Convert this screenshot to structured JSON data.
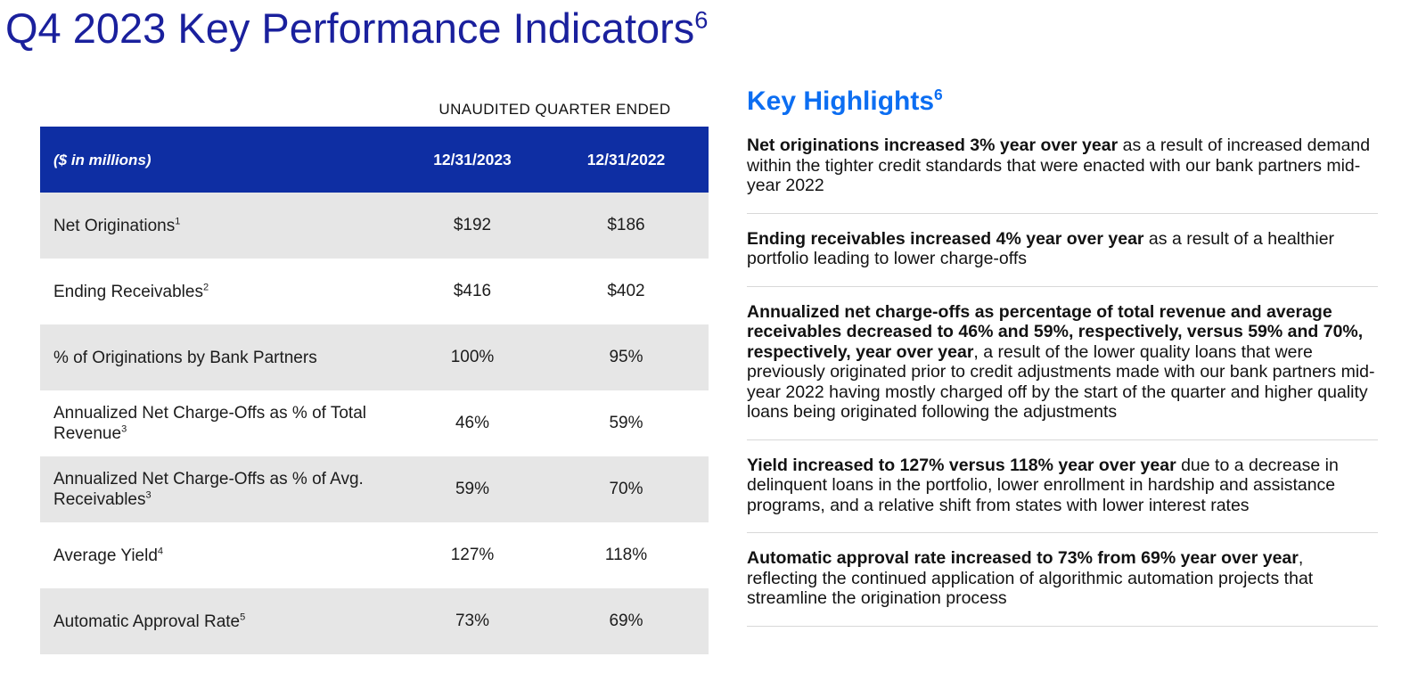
{
  "page": {
    "title": "Q4 2023 Key Performance Indicators",
    "title_superscript": "6"
  },
  "table": {
    "caption": "UNAUDITED QUARTER ENDED",
    "header": {
      "label": "($ in millions)",
      "col2023": "12/31/2023",
      "col2022": "12/31/2022"
    },
    "rows": [
      {
        "label": "Net Originations",
        "sup": "1",
        "v2023": "$192",
        "v2022": "$186"
      },
      {
        "label": "Ending Receivables",
        "sup": "2",
        "v2023": "$416",
        "v2022": "$402"
      },
      {
        "label": "% of Originations by Bank Partners",
        "sup": "",
        "v2023": "100%",
        "v2022": "95%"
      },
      {
        "label": "Annualized Net Charge-Offs as % of Total Revenue",
        "sup": "3",
        "v2023": "46%",
        "v2022": "59%"
      },
      {
        "label": "Annualized Net Charge-Offs as % of Avg. Receivables",
        "sup": "3",
        "v2023": "59%",
        "v2022": "70%"
      },
      {
        "label": "Average Yield",
        "sup": "4",
        "v2023": "127%",
        "v2022": "118%"
      },
      {
        "label": "Automatic Approval Rate",
        "sup": "5",
        "v2023": "73%",
        "v2022": "69%"
      }
    ]
  },
  "highlights": {
    "heading": "Key Highlights",
    "heading_superscript": "6",
    "items": [
      {
        "bold": "Net originations increased 3% year over year",
        "rest": " as a result of increased demand within the tighter credit standards that were enacted with our bank partners mid-year 2022"
      },
      {
        "bold": "Ending receivables increased 4% year over year",
        "rest": " as a result of a healthier portfolio leading to lower charge-offs"
      },
      {
        "bold": "Annualized net charge-offs as percentage of total revenue and average receivables decreased to 46% and 59%, respectively, versus 59% and 70%, respectively, year over year",
        "rest": ", a result of the lower quality loans that were previously originated prior to credit adjustments made with our bank partners mid-year 2022 having mostly charged off by the start of the quarter and higher quality loans being originated following the adjustments"
      },
      {
        "bold": "Yield increased to 127% versus 118% year over year",
        "rest": " due to a decrease in delinquent loans in the portfolio, lower enrollment in hardship and assistance programs, and a relative shift from states with lower interest rates"
      },
      {
        "bold": "Automatic approval rate increased to 73% from 69% year over year",
        "rest": ", reflecting the continued application of algorithmic automation projects that streamline the origination process"
      }
    ]
  },
  "colors": {
    "title_blue": "#1a209d",
    "table_header_blue": "#0e2ea3",
    "highlights_blue": "#0c6ef2",
    "row_gray": "#e6e6e6",
    "divider_gray": "#d8d8d8",
    "body_text": "#121212"
  }
}
